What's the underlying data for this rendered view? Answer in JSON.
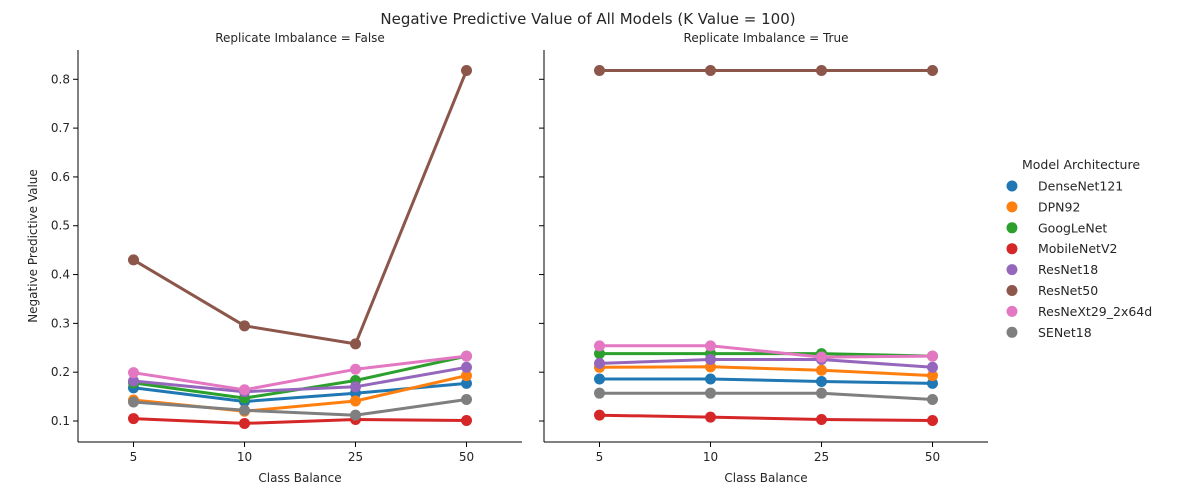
{
  "chart_data": {
    "type": "line",
    "title": "Negative Predictive Value of All Models (K Value = 100)",
    "ylabel": "Negative Predictive Value",
    "xlabel": "Class Balance",
    "categories": [
      "5",
      "10",
      "25",
      "50"
    ],
    "yticks": [
      "0.1",
      "0.2",
      "0.3",
      "0.4",
      "0.5",
      "0.6",
      "0.7",
      "0.8"
    ],
    "ylim": [
      0.057,
      0.86
    ],
    "legend": {
      "title": "Model Architecture",
      "placement": "right"
    },
    "grid": false,
    "colors": {
      "DenseNet121": "#1f77b4",
      "DPN92": "#ff7f0e",
      "GoogLeNet": "#2ca02c",
      "MobileNetV2": "#d62728",
      "ResNet18": "#9467bd",
      "ResNet50": "#8c564b",
      "ResNeXt29_2x64d": "#e377c2",
      "SENet18": "#7f7f7f"
    },
    "panels": [
      {
        "title": "Replicate Imbalance = False",
        "series": [
          {
            "name": "DenseNet121",
            "values": [
              0.168,
              0.14,
              0.157,
              0.177
            ]
          },
          {
            "name": "DPN92",
            "values": [
              0.143,
              0.12,
              0.141,
              0.193
            ]
          },
          {
            "name": "GoogLeNet",
            "values": [
              0.178,
              0.147,
              0.183,
              0.233
            ]
          },
          {
            "name": "MobileNetV2",
            "values": [
              0.105,
              0.095,
              0.103,
              0.101
            ]
          },
          {
            "name": "ResNet18",
            "values": [
              0.182,
              0.16,
              0.17,
              0.21
            ]
          },
          {
            "name": "ResNet50",
            "values": [
              0.43,
              0.295,
              0.258,
              0.818
            ]
          },
          {
            "name": "ResNeXt29_2x64d",
            "values": [
              0.199,
              0.164,
              0.206,
              0.233
            ]
          },
          {
            "name": "SENet18",
            "values": [
              0.139,
              0.122,
              0.112,
              0.144
            ]
          }
        ]
      },
      {
        "title": "Replicate Imbalance = True",
        "series": [
          {
            "name": "DenseNet121",
            "values": [
              0.186,
              0.186,
              0.181,
              0.177
            ]
          },
          {
            "name": "DPN92",
            "values": [
              0.21,
              0.211,
              0.204,
              0.193
            ]
          },
          {
            "name": "GoogLeNet",
            "values": [
              0.238,
              0.238,
              0.238,
              0.233
            ]
          },
          {
            "name": "MobileNetV2",
            "values": [
              0.112,
              0.108,
              0.103,
              0.101
            ]
          },
          {
            "name": "ResNet18",
            "values": [
              0.218,
              0.226,
              0.226,
              0.21
            ]
          },
          {
            "name": "ResNet50",
            "values": [
              0.818,
              0.818,
              0.818,
              0.818
            ]
          },
          {
            "name": "ResNeXt29_2x64d",
            "values": [
              0.254,
              0.254,
              0.231,
              0.233
            ]
          },
          {
            "name": "SENet18",
            "values": [
              0.157,
              0.157,
              0.157,
              0.144
            ]
          }
        ]
      }
    ]
  }
}
